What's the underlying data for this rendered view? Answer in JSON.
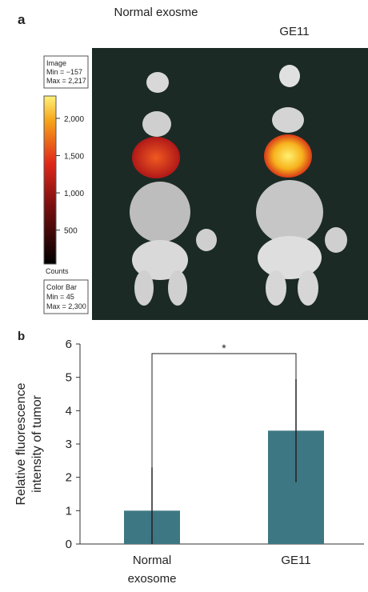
{
  "panel_a": {
    "label": "a",
    "columns": [
      "Normal exosme",
      "GE11"
    ],
    "image_box": [
      "Image",
      "Min = −157",
      "Max = 2,217"
    ],
    "colorbar_box": [
      "Color Bar",
      "Min = 45",
      "Max = 2,300"
    ],
    "colorbar_unit": "Counts",
    "clim": [
      45,
      2300
    ],
    "colorbar_ticks": [
      {
        "value": 2000,
        "label": "2,000"
      },
      {
        "value": 1500,
        "label": "1,500"
      },
      {
        "value": 1000,
        "label": "1,000"
      },
      500
    ]
  },
  "chart_data": {
    "type": "bar",
    "panel_label": "b",
    "ylabel": [
      "Relative fluorescence",
      "intensity of tumor"
    ],
    "categories": [
      [
        "Normal",
        "exosome"
      ],
      [
        "GE11"
      ]
    ],
    "values": [
      1.0,
      3.4
    ],
    "errors": [
      1.3,
      1.55
    ],
    "color": "#3e7784",
    "significance": "*",
    "ylim": [
      0,
      6
    ],
    "yticks": [
      0,
      1,
      2,
      3,
      4,
      5,
      6
    ]
  }
}
